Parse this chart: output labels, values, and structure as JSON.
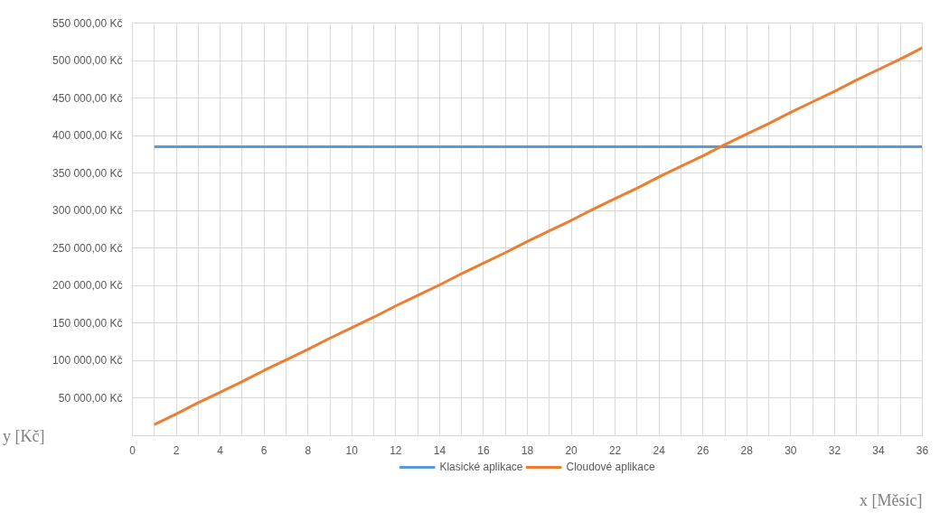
{
  "chart_data": {
    "type": "line",
    "xlabel": "x [Měsíc]",
    "ylabel": "y [Kč]",
    "x": [
      1,
      2,
      3,
      4,
      5,
      6,
      7,
      8,
      9,
      10,
      11,
      12,
      13,
      14,
      15,
      16,
      17,
      18,
      19,
      20,
      21,
      22,
      23,
      24,
      25,
      26,
      27,
      28,
      29,
      30,
      31,
      32,
      33,
      34,
      35,
      36
    ],
    "series": [
      {
        "name": "Klasické aplikace",
        "color": "#5b9bd5",
        "values": [
          385000,
          385000,
          385000,
          385000,
          385000,
          385000,
          385000,
          385000,
          385000,
          385000,
          385000,
          385000,
          385000,
          385000,
          385000,
          385000,
          385000,
          385000,
          385000,
          385000,
          385000,
          385000,
          385000,
          385000,
          385000,
          385000,
          385000,
          385000,
          385000,
          385000,
          385000,
          385000,
          385000,
          385000,
          385000,
          385000
        ]
      },
      {
        "name": "Cloudové aplikace",
        "color": "#ed7d31",
        "values": [
          15000,
          29000,
          44000,
          58000,
          72000,
          87000,
          101000,
          115000,
          130000,
          144000,
          158000,
          173000,
          187000,
          201000,
          216000,
          230000,
          244000,
          259000,
          273000,
          287000,
          302000,
          316000,
          330000,
          345000,
          359000,
          373000,
          388000,
          402000,
          416000,
          431000,
          445000,
          459000,
          474000,
          488000,
          502000,
          517000
        ]
      }
    ],
    "xlim": [
      0,
      36
    ],
    "xticks": [
      0,
      {
        "value": 1,
        "label": null
      },
      2,
      {
        "value": 3,
        "label": null
      },
      4,
      {
        "value": 5,
        "label": null
      },
      6,
      {
        "value": 7,
        "label": null
      },
      8,
      {
        "value": 9,
        "label": null
      },
      10,
      {
        "value": 11,
        "label": null
      },
      12,
      {
        "value": 13,
        "label": null
      },
      14,
      {
        "value": 15,
        "label": null
      },
      16,
      {
        "value": 17,
        "label": null
      },
      18,
      {
        "value": 19,
        "label": null
      },
      20,
      {
        "value": 21,
        "label": null
      },
      22,
      {
        "value": 23,
        "label": null
      },
      24,
      {
        "value": 25,
        "label": null
      },
      26,
      {
        "value": 27,
        "label": null
      },
      28,
      {
        "value": 29,
        "label": null
      },
      30,
      {
        "value": 31,
        "label": null
      },
      32,
      {
        "value": 33,
        "label": null
      },
      34,
      {
        "value": 35,
        "label": null
      },
      36
    ],
    "ylim": [
      0,
      550000
    ],
    "yticks": [
      {
        "value": 0,
        "label": null
      },
      {
        "value": 50000,
        "label": "50 000,00 Kč"
      },
      {
        "value": 100000,
        "label": "100 000,00 Kč"
      },
      {
        "value": 150000,
        "label": "150 000,00 Kč"
      },
      {
        "value": 200000,
        "label": "200 000,00 Kč"
      },
      {
        "value": 250000,
        "label": "250 000,00 Kč"
      },
      {
        "value": 300000,
        "label": "300 000,00 Kč"
      },
      {
        "value": 350000,
        "label": "350 000,00 Kč"
      },
      {
        "value": 400000,
        "label": "400 000,00 Kč"
      },
      {
        "value": 450000,
        "label": "450 000,00 Kč"
      },
      {
        "value": 500000,
        "label": "500 000,00 Kč"
      },
      {
        "value": 550000,
        "label": "550 000,00 Kč"
      }
    ],
    "grid": true,
    "legend": "bottom",
    "marker": "none",
    "line_style": "solid"
  }
}
